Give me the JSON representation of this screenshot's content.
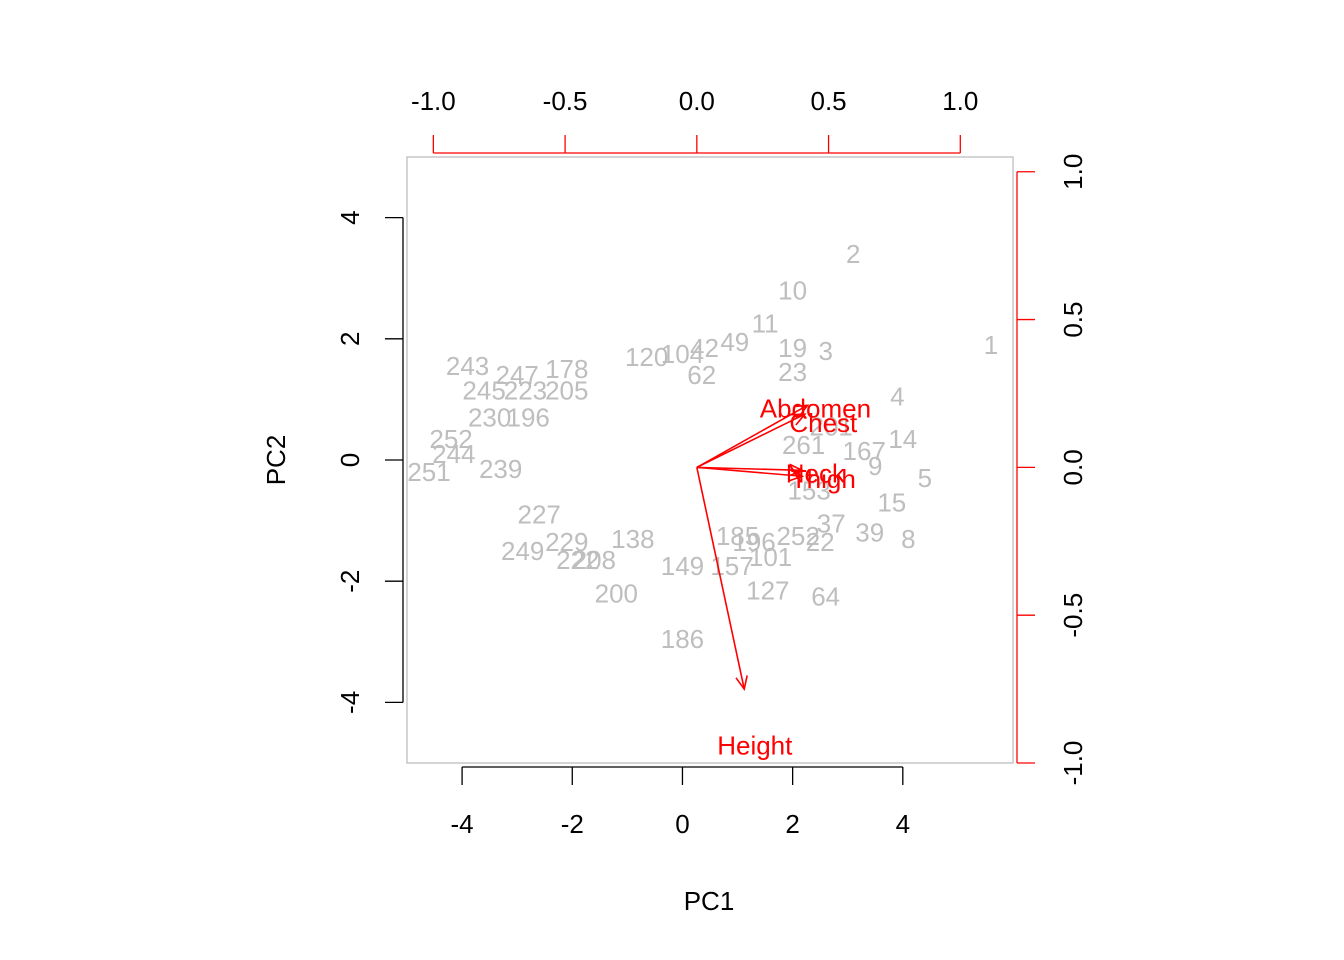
{
  "chart_data": {
    "type": "scatter",
    "subtype": "biplot",
    "title": "",
    "xlabel": "PC1",
    "ylabel": "PC2",
    "xlim": [
      -5,
      6
    ],
    "ylim": [
      -5,
      5
    ],
    "x_ticks": [
      -4,
      -2,
      0,
      2,
      4
    ],
    "y_ticks": [
      -4,
      -2,
      0,
      2,
      4
    ],
    "loading_xlim": [
      -1.1,
      1.2
    ],
    "loading_ylim": [
      -1.0,
      1.05
    ],
    "loading_x_ticks": [
      "-1.0",
      "-0.5",
      "0.0",
      "0.5",
      "1.0"
    ],
    "loading_x_tick_values": [
      -1.0,
      -0.5,
      0.0,
      0.5,
      1.0
    ],
    "loading_y_ticks": [
      "-1.0",
      "-0.5",
      "0.0",
      "0.5",
      "1.0"
    ],
    "loading_y_tick_values": [
      -1.0,
      -0.5,
      0.0,
      0.5,
      1.0
    ],
    "grid": false,
    "colors": {
      "points": "#bebebe",
      "loadings": "#ff0000",
      "axes": "#000000",
      "frame": "#bebebe"
    },
    "observations": [
      {
        "label": "1",
        "x": 5.6,
        "y": 1.9
      },
      {
        "label": "2",
        "x": 3.1,
        "y": 3.4
      },
      {
        "label": "10",
        "x": 2.0,
        "y": 2.8
      },
      {
        "label": "11",
        "x": 1.5,
        "y": 2.25
      },
      {
        "label": "19",
        "x": 2.0,
        "y": 1.85
      },
      {
        "label": "3",
        "x": 2.6,
        "y": 1.8
      },
      {
        "label": "49",
        "x": 0.95,
        "y": 1.95
      },
      {
        "label": "42",
        "x": 0.4,
        "y": 1.85
      },
      {
        "label": "104",
        "x": 0.0,
        "y": 1.75
      },
      {
        "label": "120",
        "x": -0.65,
        "y": 1.7
      },
      {
        "label": "62",
        "x": 0.35,
        "y": 1.4
      },
      {
        "label": "23",
        "x": 2.0,
        "y": 1.45
      },
      {
        "label": "4",
        "x": 3.9,
        "y": 1.05
      },
      {
        "label": "14",
        "x": 4.0,
        "y": 0.35
      },
      {
        "label": "167",
        "x": 3.3,
        "y": 0.15
      },
      {
        "label": "9",
        "x": 3.5,
        "y": -0.1
      },
      {
        "label": "5",
        "x": 4.4,
        "y": -0.3
      },
      {
        "label": "15",
        "x": 3.8,
        "y": -0.7
      },
      {
        "label": "8",
        "x": 4.1,
        "y": -1.3
      },
      {
        "label": "39",
        "x": 3.4,
        "y": -1.2
      },
      {
        "label": "22",
        "x": 2.5,
        "y": -1.35
      },
      {
        "label": "37",
        "x": 2.7,
        "y": -1.05
      },
      {
        "label": "101",
        "x": 1.6,
        "y": -1.6
      },
      {
        "label": "127",
        "x": 1.55,
        "y": -2.15
      },
      {
        "label": "64",
        "x": 2.6,
        "y": -2.25
      },
      {
        "label": "157",
        "x": 0.9,
        "y": -1.75
      },
      {
        "label": "149",
        "x": 0.0,
        "y": -1.75
      },
      {
        "label": "186",
        "x": 0.0,
        "y": -2.95
      },
      {
        "label": "200",
        "x": -1.2,
        "y": -2.2
      },
      {
        "label": "243",
        "x": -3.9,
        "y": 1.55
      },
      {
        "label": "247",
        "x": -3.0,
        "y": 1.4
      },
      {
        "label": "178",
        "x": -2.1,
        "y": 1.5
      },
      {
        "label": "245",
        "x": -3.6,
        "y": 1.15
      },
      {
        "label": "223",
        "x": -2.85,
        "y": 1.15
      },
      {
        "label": "205",
        "x": -2.1,
        "y": 1.15
      },
      {
        "label": "230",
        "x": -3.5,
        "y": 0.7
      },
      {
        "label": "196",
        "x": -2.8,
        "y": 0.7
      },
      {
        "label": "252",
        "x": -4.2,
        "y": 0.35
      },
      {
        "label": "244",
        "x": -4.15,
        "y": 0.1
      },
      {
        "label": "251",
        "x": -4.6,
        "y": -0.2
      },
      {
        "label": "239",
        "x": -3.3,
        "y": -0.15
      },
      {
        "label": "227",
        "x": -2.6,
        "y": -0.9
      },
      {
        "label": "249",
        "x": -2.9,
        "y": -1.5
      },
      {
        "label": "229",
        "x": -2.1,
        "y": -1.35
      },
      {
        "label": "222",
        "x": -1.9,
        "y": -1.65
      },
      {
        "label": "208",
        "x": -1.6,
        "y": -1.65
      },
      {
        "label": "138",
        "x": -0.9,
        "y": -1.3
      },
      {
        "label": "196",
        "x": 1.3,
        "y": -1.35
      },
      {
        "label": "185",
        "x": 1.0,
        "y": -1.25
      },
      {
        "label": "153",
        "x": 2.3,
        "y": -0.5
      },
      {
        "label": "252",
        "x": 2.1,
        "y": -1.25
      },
      {
        "label": "261",
        "x": 2.2,
        "y": 0.25
      },
      {
        "label": "201",
        "x": 2.7,
        "y": 0.55
      }
    ],
    "loadings": [
      {
        "name": "Abdomen",
        "x": 0.42,
        "y": 0.21,
        "label_x": 0.45,
        "label_y": 0.2
      },
      {
        "name": "Chest",
        "x": 0.41,
        "y": 0.18,
        "label_x": 0.48,
        "label_y": 0.15
      },
      {
        "name": "Neck",
        "x": 0.4,
        "y": -0.01,
        "label_x": 0.45,
        "label_y": -0.02
      },
      {
        "name": "Thigh",
        "x": 0.4,
        "y": -0.03,
        "label_x": 0.48,
        "label_y": -0.04
      },
      {
        "name": "Height",
        "x": 0.18,
        "y": -0.75,
        "label_x": 0.22,
        "label_y": -0.94
      }
    ]
  }
}
